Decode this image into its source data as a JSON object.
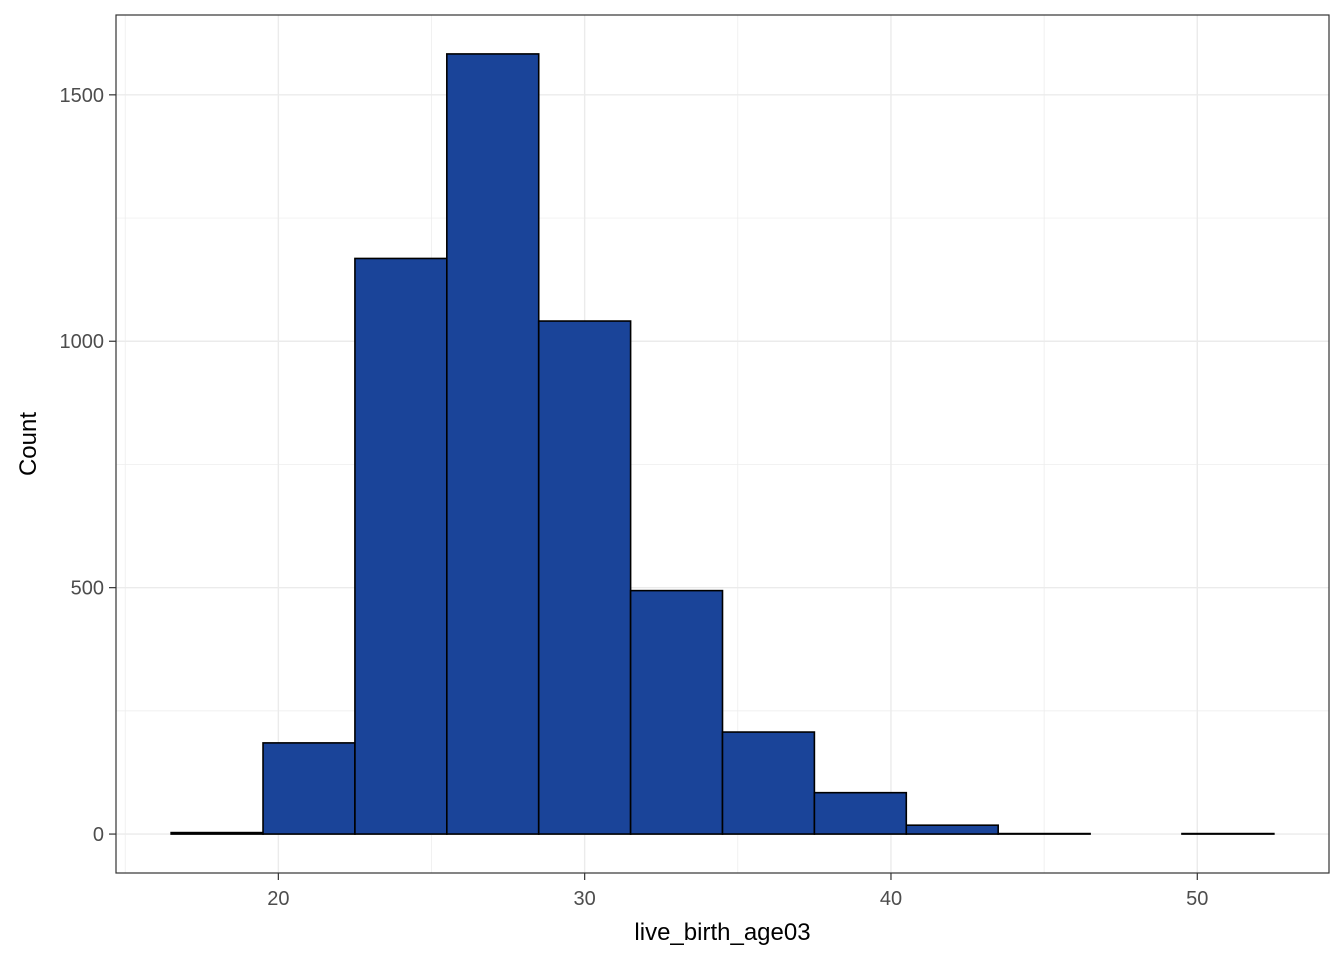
{
  "chart_data": {
    "type": "bar",
    "subtype": "histogram",
    "xlabel": "live_birth_age03",
    "ylabel": "Count",
    "binwidth": 3,
    "bins": [
      {
        "x0": 16.5,
        "x1": 19.5,
        "count": 3
      },
      {
        "x0": 19.5,
        "x1": 22.5,
        "count": 185
      },
      {
        "x0": 22.5,
        "x1": 25.5,
        "count": 1168
      },
      {
        "x0": 25.5,
        "x1": 28.5,
        "count": 1583
      },
      {
        "x0": 28.5,
        "x1": 31.5,
        "count": 1041
      },
      {
        "x0": 31.5,
        "x1": 34.5,
        "count": 494
      },
      {
        "x0": 34.5,
        "x1": 37.5,
        "count": 207
      },
      {
        "x0": 37.5,
        "x1": 40.5,
        "count": 84
      },
      {
        "x0": 40.5,
        "x1": 43.5,
        "count": 18
      },
      {
        "x0": 43.5,
        "x1": 46.5,
        "count": 1
      },
      {
        "x0": 46.5,
        "x1": 49.5,
        "count": 0
      },
      {
        "x0": 49.5,
        "x1": 52.5,
        "count": 1
      }
    ],
    "xlim": [
      14.7,
      54.3
    ],
    "ylim": [
      -79,
      1662
    ],
    "x_ticks": [
      20,
      30,
      40,
      50
    ],
    "x_tick_labels": [
      "20",
      "30",
      "40",
      "50"
    ],
    "y_ticks": [
      0,
      500,
      1000,
      1500
    ],
    "y_tick_labels": [
      "0",
      "500",
      "1000",
      "1500"
    ],
    "bar_fill": "#1a4499",
    "bar_outline": "#000000",
    "grid_color": "#ebebeb",
    "grid": true,
    "legend": "none",
    "theme": "bw"
  }
}
